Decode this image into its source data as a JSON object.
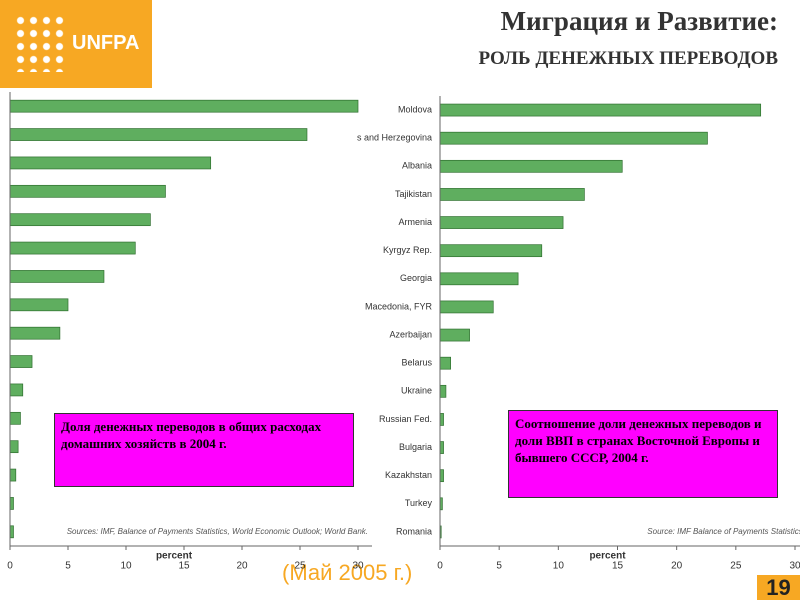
{
  "header": {
    "logo": "UNFPA",
    "title": "Миграция и Развитие:",
    "subtitle": "РОЛЬ ДЕНЕЖНЫХ ПЕРЕВОДОВ"
  },
  "footer": {
    "date": "(Май 2005 г.)",
    "page": "19"
  },
  "chart_data": [
    {
      "type": "barh",
      "annotation": "Доля денежных переводов в общих расходах домашних хозяйств в 2004 г.",
      "source": "Sources: IMF, Balance of Payments Statistics, World Economic Outlook; World Bank.",
      "xlabel": "percent",
      "categories": [
        null,
        null,
        null,
        null,
        null,
        null,
        null,
        null,
        null,
        null,
        null,
        null,
        null,
        null,
        null,
        null
      ],
      "values": [
        30,
        25.6,
        17.3,
        13.4,
        12.1,
        10.8,
        8.1,
        5,
        4.3,
        1.9,
        1.1,
        0.9,
        0.7,
        0.5,
        0.3,
        0.3
      ],
      "color": "#5fae5f",
      "xlim": [
        0,
        30
      ],
      "xticks": [
        0,
        5,
        10,
        15,
        20,
        25,
        30
      ]
    },
    {
      "type": "barh",
      "annotation": "Соотношение доли денежных переводов и доли ВВП в странах Восточной Европы и бывшего СССР, 2004 г.",
      "source": "Source: IMF Balance of Payments Statistics.",
      "xlabel": "percent",
      "categories": [
        "Moldova",
        "s and Herzegovina",
        "Albania",
        "Tajikistan",
        "Armenia",
        "Kyrgyz Rep.",
        "Georgia",
        "Macedonia, FYR",
        "Azerbaijan",
        "Belarus",
        "Ukraine",
        "Russian Fed.",
        "Bulgaria",
        "Kazakhstan",
        "Turkey",
        "Romania"
      ],
      "values": [
        27.1,
        22.6,
        15.4,
        12.2,
        10.4,
        8.6,
        6.6,
        4.5,
        2.5,
        0.9,
        0.5,
        0.3,
        0.3,
        0.3,
        0.2,
        0.1
      ],
      "color": "#5fae5f",
      "xlim": [
        0,
        30
      ],
      "xticks": [
        0,
        5,
        10,
        15,
        20,
        25,
        30
      ]
    }
  ]
}
